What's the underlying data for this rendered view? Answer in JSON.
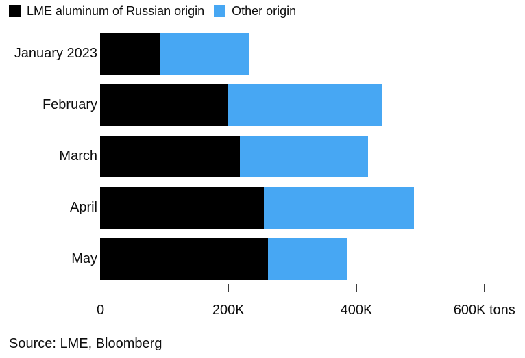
{
  "chart_data": {
    "type": "bar",
    "orientation": "horizontal",
    "stacked": true,
    "title": "",
    "unit": "K tons",
    "categories": [
      "January 2023",
      "February",
      "March",
      "April",
      "May"
    ],
    "series": [
      {
        "name": "LME aluminum of Russian origin",
        "color": "#000000",
        "values": [
          93,
          200,
          219,
          256,
          262
        ]
      },
      {
        "name": "Other origin",
        "color": "#47a7f3",
        "values": [
          139,
          240,
          200,
          235,
          125
        ]
      }
    ],
    "totals": [
      232,
      440,
      419,
      491,
      387
    ],
    "xlim": [
      0,
      650
    ],
    "x_ticks": [
      {
        "value": 0,
        "label": "0"
      },
      {
        "value": 200,
        "label": "200K"
      },
      {
        "value": 400,
        "label": "400K"
      },
      {
        "value": 600,
        "label": "600K tons"
      }
    ],
    "grid": false,
    "legend_position": "top"
  },
  "legend": {
    "items": [
      {
        "label": "LME aluminum of Russian origin",
        "color": "#000000"
      },
      {
        "label": "Other origin",
        "color": "#47a7f3"
      }
    ]
  },
  "footer": {
    "source": "Source: LME, Bloomberg"
  }
}
